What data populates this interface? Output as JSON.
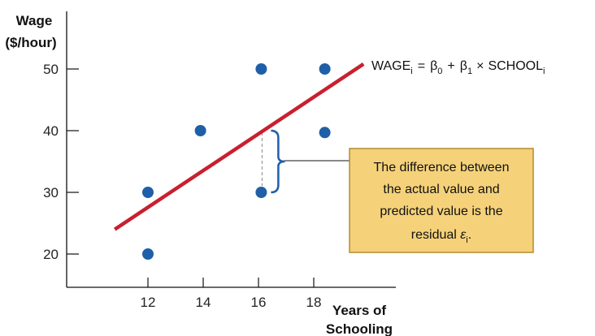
{
  "chart_data": {
    "type": "scatter",
    "title": "",
    "xlabel": [
      "Years of",
      "Schooling"
    ],
    "ylabel": [
      "Wage",
      "($/hour)"
    ],
    "x_ticks": [
      12,
      14,
      16,
      18
    ],
    "y_ticks": [
      20,
      30,
      40,
      50
    ],
    "points": [
      {
        "x": 12,
        "y": 30
      },
      {
        "x": 12,
        "y": 20
      },
      {
        "x": 13.9,
        "y": 40
      },
      {
        "x": 16.1,
        "y": 50
      },
      {
        "x": 16.1,
        "y": 30
      },
      {
        "x": 18.4,
        "y": 50
      },
      {
        "x": 18.4,
        "y": 39.7
      }
    ],
    "regression_line": {
      "x1": 10.8,
      "y1": 24,
      "x2": 19.8,
      "y2": 50.8
    },
    "residual_point": {
      "x": 16.1,
      "y": 30,
      "predicted": 40
    },
    "equation": {
      "lhs": "WAGE",
      "lhs_sub": "i",
      "eq": "=",
      "b0": "β",
      "b0_sub": "0",
      "plus": "+",
      "b1": "β",
      "b1_sub": "1",
      "times": "×",
      "var": "SCHOOL",
      "var_sub": "i"
    },
    "callout": {
      "lines": [
        "The difference between",
        "the actual value and",
        "predicted value is the"
      ],
      "last_line": "residual ",
      "epsilon": "ε",
      "epsilon_sub": "i",
      "period": "."
    },
    "colors": {
      "points": "#1f5fa8",
      "line": "#c8202f",
      "bracket": "#1f5fa8",
      "callout_fill": "#f5d27a",
      "callout_border": "#b58a2e"
    },
    "grid": false
  }
}
